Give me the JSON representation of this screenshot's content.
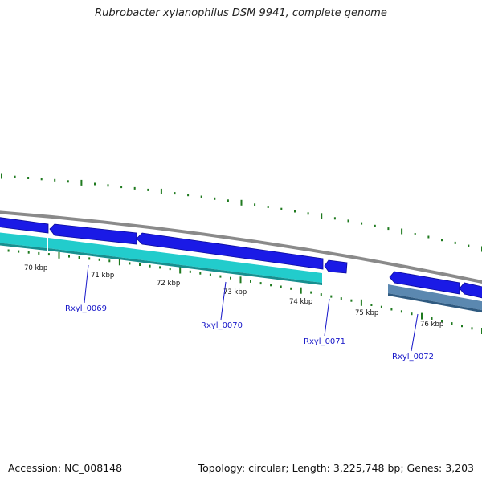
{
  "title": "Rubrobacter xylanophilus DSM 9941, complete genome",
  "footer": {
    "accession": "Accession: NC_008148",
    "summary": "Topology: circular; Length: 3,225,748 bp; Genes: 3,203"
  },
  "scale_labels": [
    "70 kbp",
    "71 kbp",
    "72 kbp",
    "73 kbp",
    "74 kbp",
    "75 kbp",
    "76 kbp"
  ],
  "genes": [
    "Rxyl_0069",
    "Rxyl_0070",
    "Rxyl_0071",
    "Rxyl_0072"
  ],
  "colors": {
    "backbone": "#888888",
    "forward_gene": "#1a1ae6",
    "cds_cyan": "#22cccc",
    "cds_steel": "#5b88b0",
    "tick": "#1f7a1f",
    "label": "#1414c8"
  }
}
